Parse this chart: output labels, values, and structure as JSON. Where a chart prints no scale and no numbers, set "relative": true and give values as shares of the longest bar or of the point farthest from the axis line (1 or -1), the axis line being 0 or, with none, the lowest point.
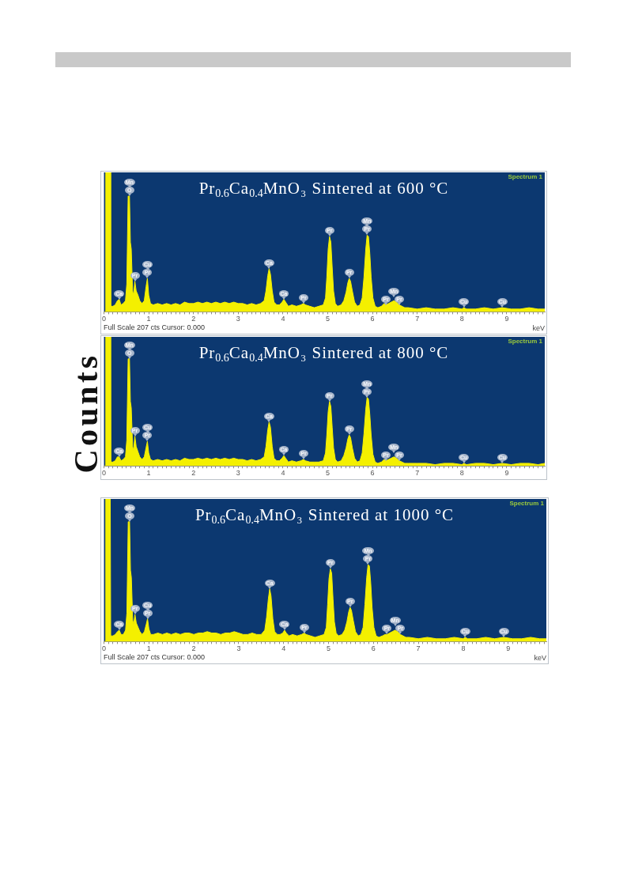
{
  "chart_data": [
    {
      "type": "area",
      "title": "Pr$_{0.6}$Ca$_{0.4}$MnO₃ Sintered at 600 °C",
      "xlabel": "keV",
      "relative": true,
      "color": "#f4f000",
      "xlim": [
        0,
        9.85
      ],
      "xticks": [
        0,
        {
          "value": 0.1,
          "label": null
        },
        {
          "value": 0.2,
          "label": null
        },
        {
          "value": 0.3,
          "label": null
        },
        {
          "value": 0.4,
          "label": null
        },
        {
          "value": 0.5,
          "label": null
        },
        {
          "value": 0.6,
          "label": null
        },
        {
          "value": 0.7,
          "label": null
        },
        {
          "value": 0.8,
          "label": null
        },
        {
          "value": 0.9,
          "label": null
        },
        1,
        {
          "value": 1.1,
          "label": null
        },
        {
          "value": 1.2,
          "label": null
        },
        {
          "value": 1.3,
          "label": null
        },
        {
          "value": 1.4,
          "label": null
        },
        {
          "value": 1.5,
          "label": null
        },
        {
          "value": 1.6,
          "label": null
        },
        {
          "value": 1.7,
          "label": null
        },
        {
          "value": 1.8,
          "label": null
        },
        {
          "value": 1.9,
          "label": null
        },
        2,
        {
          "value": 2.1,
          "label": null
        },
        {
          "value": 2.2,
          "label": null
        },
        {
          "value": 2.3,
          "label": null
        },
        {
          "value": 2.4,
          "label": null
        },
        {
          "value": 2.5,
          "label": null
        },
        {
          "value": 2.6,
          "label": null
        },
        {
          "value": 2.7,
          "label": null
        },
        {
          "value": 2.8,
          "label": null
        },
        {
          "value": 2.9,
          "label": null
        },
        3,
        {
          "value": 3.1,
          "label": null
        },
        {
          "value": 3.2,
          "label": null
        },
        {
          "value": 3.3,
          "label": null
        },
        {
          "value": 3.4,
          "label": null
        },
        {
          "value": 3.5,
          "label": null
        },
        {
          "value": 3.6,
          "label": null
        },
        {
          "value": 3.7,
          "label": null
        },
        {
          "value": 3.8,
          "label": null
        },
        {
          "value": 3.9,
          "label": null
        },
        4,
        {
          "value": 4.1,
          "label": null
        },
        {
          "value": 4.2,
          "label": null
        },
        {
          "value": 4.3,
          "label": null
        },
        {
          "value": 4.4,
          "label": null
        },
        {
          "value": 4.5,
          "label": null
        },
        {
          "value": 4.6,
          "label": null
        },
        {
          "value": 4.7,
          "label": null
        },
        {
          "value": 4.8,
          "label": null
        },
        {
          "value": 4.9,
          "label": null
        },
        5,
        {
          "value": 5.1,
          "label": null
        },
        {
          "value": 5.2,
          "label": null
        },
        {
          "value": 5.3,
          "label": null
        },
        {
          "value": 5.4,
          "label": null
        },
        {
          "value": 5.5,
          "label": null
        },
        {
          "value": 5.6,
          "label": null
        },
        {
          "value": 5.7,
          "label": null
        },
        {
          "value": 5.8,
          "label": null
        },
        {
          "value": 5.9,
          "label": null
        },
        6,
        {
          "value": 6.1,
          "label": null
        },
        {
          "value": 6.2,
          "label": null
        },
        {
          "value": 6.3,
          "label": null
        },
        {
          "value": 6.4,
          "label": null
        },
        {
          "value": 6.5,
          "label": null
        },
        {
          "value": 6.6,
          "label": null
        },
        {
          "value": 6.7,
          "label": null
        },
        {
          "value": 6.8,
          "label": null
        },
        {
          "value": 6.9,
          "label": null
        },
        7,
        {
          "value": 7.1,
          "label": null
        },
        {
          "value": 7.2,
          "label": null
        },
        {
          "value": 7.3,
          "label": null
        },
        {
          "value": 7.4,
          "label": null
        },
        {
          "value": 7.5,
          "label": null
        },
        {
          "value": 7.6,
          "label": null
        },
        {
          "value": 7.7,
          "label": null
        },
        {
          "value": 7.8,
          "label": null
        },
        {
          "value": 7.9,
          "label": null
        },
        8,
        {
          "value": 8.1,
          "label": null
        },
        {
          "value": 8.2,
          "label": null
        },
        {
          "value": 8.3,
          "label": null
        },
        {
          "value": 8.4,
          "label": null
        },
        {
          "value": 8.5,
          "label": null
        },
        {
          "value": 8.6,
          "label": null
        },
        {
          "value": 8.7,
          "label": null
        },
        {
          "value": 8.8,
          "label": null
        },
        {
          "value": 8.9,
          "label": null
        },
        9,
        {
          "value": 9.1,
          "label": null
        },
        {
          "value": 9.2,
          "label": null
        },
        {
          "value": 9.3,
          "label": null
        },
        {
          "value": 9.4,
          "label": null
        },
        {
          "value": 9.5,
          "label": null
        },
        {
          "value": 9.6,
          "label": null
        },
        {
          "value": 9.7,
          "label": null
        },
        {
          "value": 9.8,
          "label": null
        }
      ],
      "x": [
        0,
        0.03,
        0.04,
        0.14,
        0.15,
        0.2,
        0.25,
        0.3,
        0.34,
        0.38,
        0.43,
        0.48,
        0.51,
        0.54,
        0.57,
        0.59,
        0.61,
        0.64,
        0.66,
        0.69,
        0.72,
        0.76,
        0.8,
        0.85,
        0.9,
        0.94,
        0.97,
        1,
        1.04,
        1.1,
        1.2,
        1.3,
        1.4,
        1.5,
        1.6,
        1.7,
        1.8,
        1.9,
        2,
        2.1,
        2.2,
        2.3,
        2.4,
        2.5,
        2.6,
        2.7,
        2.8,
        2.9,
        3,
        3.1,
        3.2,
        3.3,
        3.4,
        3.5,
        3.58,
        3.62,
        3.66,
        3.69,
        3.72,
        3.76,
        3.8,
        3.86,
        3.92,
        3.98,
        4.02,
        4.06,
        4.12,
        4.2,
        4.3,
        4.4,
        4.46,
        4.5,
        4.6,
        4.7,
        4.8,
        4.9,
        4.95,
        4.98,
        5.01,
        5.04,
        5.07,
        5.1,
        5.13,
        5.17,
        5.22,
        5.3,
        5.36,
        5.41,
        5.45,
        5.48,
        5.51,
        5.55,
        5.6,
        5.66,
        5.72,
        5.77,
        5.81,
        5.85,
        5.88,
        5.91,
        5.94,
        5.97,
        6.01,
        6.06,
        6.12,
        6.2,
        6.26,
        6.3,
        6.36,
        6.42,
        6.48,
        6.54,
        6.6,
        6.66,
        6.72,
        6.8,
        7,
        7.2,
        7.4,
        7.6,
        7.8,
        8,
        8.04,
        8.1,
        8.3,
        8.5,
        8.7,
        8.9,
        9.1,
        9.3,
        9.5,
        9.7,
        9.85
      ],
      "values": [
        0,
        0,
        1,
        1,
        0.04,
        0.04,
        0.05,
        0.08,
        0.09,
        0.05,
        0.06,
        0.08,
        0.2,
        0.83,
        0.83,
        0.5,
        0.45,
        0.15,
        0.12,
        0.22,
        0.15,
        0.12,
        0.08,
        0.06,
        0.08,
        0.18,
        0.24,
        0.12,
        0.06,
        0.05,
        0.06,
        0.05,
        0.06,
        0.05,
        0.06,
        0.05,
        0.07,
        0.06,
        0.06,
        0.07,
        0.06,
        0.07,
        0.06,
        0.07,
        0.06,
        0.07,
        0.06,
        0.07,
        0.06,
        0.06,
        0.05,
        0.06,
        0.05,
        0.06,
        0.08,
        0.15,
        0.26,
        0.31,
        0.27,
        0.15,
        0.07,
        0.05,
        0.05,
        0.07,
        0.09,
        0.07,
        0.04,
        0.05,
        0.04,
        0.05,
        0.06,
        0.05,
        0.04,
        0.03,
        0.04,
        0.05,
        0.1,
        0.25,
        0.45,
        0.54,
        0.5,
        0.32,
        0.15,
        0.06,
        0.04,
        0.05,
        0.08,
        0.14,
        0.21,
        0.24,
        0.22,
        0.15,
        0.07,
        0.04,
        0.05,
        0.1,
        0.25,
        0.45,
        0.55,
        0.54,
        0.42,
        0.25,
        0.1,
        0.04,
        0.03,
        0.04,
        0.06,
        0.05,
        0.06,
        0.07,
        0.08,
        0.07,
        0.05,
        0.04,
        0.03,
        0.03,
        0.02,
        0.03,
        0.02,
        0.02,
        0.03,
        0.02,
        0.03,
        0.02,
        0.02,
        0.03,
        0.02,
        0.03,
        0.02,
        0.02,
        0.03,
        0.02,
        0.02
      ],
      "annotations": [
        "Spectrum 1",
        {
          "text": "O",
          "x": 0.57,
          "y": 0.83
        },
        {
          "text": "Mn",
          "x": 0.57,
          "y": 0.83
        },
        {
          "text": "Ca",
          "x": 0.34,
          "y": 0.09
        },
        {
          "text": "Pr",
          "x": 0.69,
          "y": 0.22
        },
        {
          "text": "Pr",
          "x": 0.97,
          "y": 0.24
        },
        {
          "text": "Cu",
          "x": 0.97,
          "y": 0.24
        },
        {
          "text": "Ca",
          "x": 3.69,
          "y": 0.31
        },
        {
          "text": "Ca",
          "x": 4.02,
          "y": 0.09
        },
        {
          "text": "Pr",
          "x": 4.46,
          "y": 0.06
        },
        {
          "text": "Pr",
          "x": 5.04,
          "y": 0.54
        },
        {
          "text": "Pr",
          "x": 5.48,
          "y": 0.24
        },
        {
          "text": "Pr",
          "x": 5.88,
          "y": 0.55
        },
        {
          "text": "Mn",
          "x": 5.88,
          "y": 0.55
        },
        {
          "text": "Pr",
          "x": 6.6,
          "y": 0.05
        },
        {
          "text": "Pr",
          "x": 6.3,
          "y": 0.05
        },
        {
          "text": "Mn",
          "x": 6.48,
          "y": 0.08
        },
        {
          "text": "Cu",
          "x": 8.04,
          "y": 0.03
        },
        {
          "text": "Cu",
          "x": 8.9,
          "y": 0.03
        },
        "Full Scale 207 cts Cursor: 0.000"
      ]
    },
    {
      "type": "area",
      "title": "Pr$_{0.6}$Ca$_{0.4}$MnO₃ Sintered at 800 °C",
      "ylabel": "Counts",
      "relative": true,
      "color": "#f4f000",
      "xlim": [
        0,
        9.85
      ],
      "xticks": [
        0,
        {
          "value": 0.1,
          "label": null
        },
        {
          "value": 0.2,
          "label": null
        },
        {
          "value": 0.3,
          "label": null
        },
        {
          "value": 0.4,
          "label": null
        },
        {
          "value": 0.5,
          "label": null
        },
        {
          "value": 0.6,
          "label": null
        },
        {
          "value": 0.7,
          "label": null
        },
        {
          "value": 0.8,
          "label": null
        },
        {
          "value": 0.9,
          "label": null
        },
        1,
        {
          "value": 1.1,
          "label": null
        },
        {
          "value": 1.2,
          "label": null
        },
        {
          "value": 1.3,
          "label": null
        },
        {
          "value": 1.4,
          "label": null
        },
        {
          "value": 1.5,
          "label": null
        },
        {
          "value": 1.6,
          "label": null
        },
        {
          "value": 1.7,
          "label": null
        },
        {
          "value": 1.8,
          "label": null
        },
        {
          "value": 1.9,
          "label": null
        },
        2,
        {
          "value": 2.1,
          "label": null
        },
        {
          "value": 2.2,
          "label": null
        },
        {
          "value": 2.3,
          "label": null
        },
        {
          "value": 2.4,
          "label": null
        },
        {
          "value": 2.5,
          "label": null
        },
        {
          "value": 2.6,
          "label": null
        },
        {
          "value": 2.7,
          "label": null
        },
        {
          "value": 2.8,
          "label": null
        },
        {
          "value": 2.9,
          "label": null
        },
        3,
        {
          "value": 3.1,
          "label": null
        },
        {
          "value": 3.2,
          "label": null
        },
        {
          "value": 3.3,
          "label": null
        },
        {
          "value": 3.4,
          "label": null
        },
        {
          "value": 3.5,
          "label": null
        },
        {
          "value": 3.6,
          "label": null
        },
        {
          "value": 3.7,
          "label": null
        },
        {
          "value": 3.8,
          "label": null
        },
        {
          "value": 3.9,
          "label": null
        },
        4,
        {
          "value": 4.1,
          "label": null
        },
        {
          "value": 4.2,
          "label": null
        },
        {
          "value": 4.3,
          "label": null
        },
        {
          "value": 4.4,
          "label": null
        },
        {
          "value": 4.5,
          "label": null
        },
        {
          "value": 4.6,
          "label": null
        },
        {
          "value": 4.7,
          "label": null
        },
        {
          "value": 4.8,
          "label": null
        },
        {
          "value": 4.9,
          "label": null
        },
        5,
        {
          "value": 5.1,
          "label": null
        },
        {
          "value": 5.2,
          "label": null
        },
        {
          "value": 5.3,
          "label": null
        },
        {
          "value": 5.4,
          "label": null
        },
        {
          "value": 5.5,
          "label": null
        },
        {
          "value": 5.6,
          "label": null
        },
        {
          "value": 5.7,
          "label": null
        },
        {
          "value": 5.8,
          "label": null
        },
        {
          "value": 5.9,
          "label": null
        },
        6,
        {
          "value": 6.1,
          "label": null
        },
        {
          "value": 6.2,
          "label": null
        },
        {
          "value": 6.3,
          "label": null
        },
        {
          "value": 6.4,
          "label": null
        },
        {
          "value": 6.5,
          "label": null
        },
        {
          "value": 6.6,
          "label": null
        },
        {
          "value": 6.7,
          "label": null
        },
        {
          "value": 6.8,
          "label": null
        },
        {
          "value": 6.9,
          "label": null
        },
        7,
        {
          "value": 7.1,
          "label": null
        },
        {
          "value": 7.2,
          "label": null
        },
        {
          "value": 7.3,
          "label": null
        },
        {
          "value": 7.4,
          "label": null
        },
        {
          "value": 7.5,
          "label": null
        },
        {
          "value": 7.6,
          "label": null
        },
        {
          "value": 7.7,
          "label": null
        },
        {
          "value": 7.8,
          "label": null
        },
        {
          "value": 7.9,
          "label": null
        },
        8,
        {
          "value": 8.1,
          "label": null
        },
        {
          "value": 8.2,
          "label": null
        },
        {
          "value": 8.3,
          "label": null
        },
        {
          "value": 8.4,
          "label": null
        },
        {
          "value": 8.5,
          "label": null
        },
        {
          "value": 8.6,
          "label": null
        },
        {
          "value": 8.7,
          "label": null
        },
        {
          "value": 8.8,
          "label": null
        },
        {
          "value": 8.9,
          "label": null
        },
        9,
        {
          "value": 9.1,
          "label": null
        },
        {
          "value": 9.2,
          "label": null
        },
        {
          "value": 9.3,
          "label": null
        },
        {
          "value": 9.4,
          "label": null
        },
        {
          "value": 9.5,
          "label": null
        },
        {
          "value": 9.6,
          "label": null
        },
        {
          "value": 9.7,
          "label": null
        },
        {
          "value": 9.8,
          "label": null
        }
      ],
      "x": [
        0,
        0.03,
        0.04,
        0.14,
        0.15,
        0.2,
        0.25,
        0.3,
        0.34,
        0.38,
        0.43,
        0.48,
        0.51,
        0.54,
        0.57,
        0.59,
        0.61,
        0.64,
        0.66,
        0.69,
        0.72,
        0.76,
        0.8,
        0.85,
        0.9,
        0.94,
        0.97,
        1,
        1.04,
        1.1,
        1.2,
        1.3,
        1.4,
        1.5,
        1.6,
        1.7,
        1.8,
        1.9,
        2,
        2.1,
        2.2,
        2.3,
        2.4,
        2.5,
        2.6,
        2.7,
        2.8,
        2.9,
        3,
        3.1,
        3.2,
        3.3,
        3.4,
        3.5,
        3.58,
        3.62,
        3.66,
        3.69,
        3.72,
        3.76,
        3.8,
        3.86,
        3.92,
        3.98,
        4.02,
        4.06,
        4.12,
        4.2,
        4.3,
        4.4,
        4.46,
        4.5,
        4.6,
        4.7,
        4.8,
        4.9,
        4.95,
        4.98,
        5.01,
        5.04,
        5.07,
        5.1,
        5.13,
        5.17,
        5.22,
        5.3,
        5.36,
        5.41,
        5.45,
        5.48,
        5.51,
        5.55,
        5.6,
        5.66,
        5.72,
        5.77,
        5.81,
        5.85,
        5.88,
        5.91,
        5.94,
        5.97,
        6.01,
        6.06,
        6.12,
        6.2,
        6.26,
        6.3,
        6.36,
        6.42,
        6.48,
        6.54,
        6.6,
        6.66,
        6.72,
        6.8,
        7,
        7.2,
        7.4,
        7.6,
        7.8,
        8,
        8.04,
        8.1,
        8.3,
        8.5,
        8.7,
        8.9,
        9.1,
        9.3,
        9.5,
        9.7,
        9.85
      ],
      "values": [
        0,
        0,
        1,
        1,
        0.03,
        0.03,
        0.04,
        0.07,
        0.07,
        0.04,
        0.05,
        0.07,
        0.2,
        0.83,
        0.83,
        0.5,
        0.45,
        0.15,
        0.12,
        0.23,
        0.15,
        0.11,
        0.07,
        0.05,
        0.07,
        0.14,
        0.19,
        0.1,
        0.05,
        0.04,
        0.05,
        0.04,
        0.05,
        0.04,
        0.05,
        0.04,
        0.06,
        0.05,
        0.05,
        0.06,
        0.05,
        0.06,
        0.05,
        0.06,
        0.05,
        0.06,
        0.05,
        0.06,
        0.05,
        0.05,
        0.04,
        0.05,
        0.04,
        0.05,
        0.07,
        0.15,
        0.28,
        0.34,
        0.3,
        0.15,
        0.06,
        0.04,
        0.04,
        0.06,
        0.08,
        0.06,
        0.03,
        0.04,
        0.03,
        0.04,
        0.05,
        0.04,
        0.03,
        0.03,
        0.03,
        0.04,
        0.1,
        0.24,
        0.42,
        0.5,
        0.46,
        0.3,
        0.14,
        0.05,
        0.03,
        0.04,
        0.08,
        0.14,
        0.21,
        0.24,
        0.22,
        0.14,
        0.06,
        0.03,
        0.04,
        0.1,
        0.25,
        0.44,
        0.53,
        0.52,
        0.4,
        0.24,
        0.09,
        0.03,
        0.02,
        0.03,
        0.05,
        0.04,
        0.05,
        0.06,
        0.07,
        0.06,
        0.04,
        0.03,
        0.02,
        0.02,
        0.02,
        0.02,
        0.01,
        0.02,
        0.02,
        0.01,
        0.02,
        0.01,
        0.02,
        0.02,
        0.01,
        0.02,
        0.01,
        0.02,
        0.02,
        0.01,
        0.02
      ],
      "annotations": [
        "Spectrum 1",
        {
          "text": "O",
          "x": 0.57,
          "y": 0.83
        },
        {
          "text": "Mn",
          "x": 0.57,
          "y": 0.83
        },
        {
          "text": "Ca",
          "x": 0.34,
          "y": 0.07
        },
        {
          "text": "Pr",
          "x": 0.69,
          "y": 0.23
        },
        {
          "text": "Pr",
          "x": 0.97,
          "y": 0.19
        },
        {
          "text": "Cu",
          "x": 0.97,
          "y": 0.19
        },
        {
          "text": "Ca",
          "x": 3.69,
          "y": 0.34
        },
        {
          "text": "Ca",
          "x": 4.02,
          "y": 0.08
        },
        {
          "text": "Pr",
          "x": 4.46,
          "y": 0.05
        },
        {
          "text": "Pr",
          "x": 5.04,
          "y": 0.5
        },
        {
          "text": "Pr",
          "x": 5.48,
          "y": 0.24
        },
        {
          "text": "Pr",
          "x": 5.88,
          "y": 0.53
        },
        {
          "text": "Mn",
          "x": 5.88,
          "y": 0.53
        },
        {
          "text": "Pr",
          "x": 6.6,
          "y": 0.04
        },
        {
          "text": "Pr",
          "x": 6.3,
          "y": 0.04
        },
        {
          "text": "Mn",
          "x": 6.48,
          "y": 0.07
        },
        {
          "text": "Cu",
          "x": 8.04,
          "y": 0.02
        },
        {
          "text": "Cu",
          "x": 8.9,
          "y": 0.02
        }
      ]
    },
    {
      "type": "area",
      "title": "Pr$_{0.6}$Ca$_{0.4}$MnO₃ Sintered at 1000 °C",
      "xlabel": "keV",
      "relative": true,
      "color": "#f4f000",
      "xlim": [
        0,
        9.85
      ],
      "xticks": [
        0,
        {
          "value": 0.1,
          "label": null
        },
        {
          "value": 0.2,
          "label": null
        },
        {
          "value": 0.3,
          "label": null
        },
        {
          "value": 0.4,
          "label": null
        },
        {
          "value": 0.5,
          "label": null
        },
        {
          "value": 0.6,
          "label": null
        },
        {
          "value": 0.7,
          "label": null
        },
        {
          "value": 0.8,
          "label": null
        },
        {
          "value": 0.9,
          "label": null
        },
        1,
        {
          "value": 1.1,
          "label": null
        },
        {
          "value": 1.2,
          "label": null
        },
        {
          "value": 1.3,
          "label": null
        },
        {
          "value": 1.4,
          "label": null
        },
        {
          "value": 1.5,
          "label": null
        },
        {
          "value": 1.6,
          "label": null
        },
        {
          "value": 1.7,
          "label": null
        },
        {
          "value": 1.8,
          "label": null
        },
        {
          "value": 1.9,
          "label": null
        },
        2,
        {
          "value": 2.1,
          "label": null
        },
        {
          "value": 2.2,
          "label": null
        },
        {
          "value": 2.3,
          "label": null
        },
        {
          "value": 2.4,
          "label": null
        },
        {
          "value": 2.5,
          "label": null
        },
        {
          "value": 2.6,
          "label": null
        },
        {
          "value": 2.7,
          "label": null
        },
        {
          "value": 2.8,
          "label": null
        },
        {
          "value": 2.9,
          "label": null
        },
        3,
        {
          "value": 3.1,
          "label": null
        },
        {
          "value": 3.2,
          "label": null
        },
        {
          "value": 3.3,
          "label": null
        },
        {
          "value": 3.4,
          "label": null
        },
        {
          "value": 3.5,
          "label": null
        },
        {
          "value": 3.6,
          "label": null
        },
        {
          "value": 3.7,
          "label": null
        },
        {
          "value": 3.8,
          "label": null
        },
        {
          "value": 3.9,
          "label": null
        },
        4,
        {
          "value": 4.1,
          "label": null
        },
        {
          "value": 4.2,
          "label": null
        },
        {
          "value": 4.3,
          "label": null
        },
        {
          "value": 4.4,
          "label": null
        },
        {
          "value": 4.5,
          "label": null
        },
        {
          "value": 4.6,
          "label": null
        },
        {
          "value": 4.7,
          "label": null
        },
        {
          "value": 4.8,
          "label": null
        },
        {
          "value": 4.9,
          "label": null
        },
        5,
        {
          "value": 5.1,
          "label": null
        },
        {
          "value": 5.2,
          "label": null
        },
        {
          "value": 5.3,
          "label": null
        },
        {
          "value": 5.4,
          "label": null
        },
        {
          "value": 5.5,
          "label": null
        },
        {
          "value": 5.6,
          "label": null
        },
        {
          "value": 5.7,
          "label": null
        },
        {
          "value": 5.8,
          "label": null
        },
        {
          "value": 5.9,
          "label": null
        },
        6,
        {
          "value": 6.1,
          "label": null
        },
        {
          "value": 6.2,
          "label": null
        },
        {
          "value": 6.3,
          "label": null
        },
        {
          "value": 6.4,
          "label": null
        },
        {
          "value": 6.5,
          "label": null
        },
        {
          "value": 6.6,
          "label": null
        },
        {
          "value": 6.7,
          "label": null
        },
        {
          "value": 6.8,
          "label": null
        },
        {
          "value": 6.9,
          "label": null
        },
        7,
        {
          "value": 7.1,
          "label": null
        },
        {
          "value": 7.2,
          "label": null
        },
        {
          "value": 7.3,
          "label": null
        },
        {
          "value": 7.4,
          "label": null
        },
        {
          "value": 7.5,
          "label": null
        },
        {
          "value": 7.6,
          "label": null
        },
        {
          "value": 7.7,
          "label": null
        },
        {
          "value": 7.8,
          "label": null
        },
        {
          "value": 7.9,
          "label": null
        },
        8,
        {
          "value": 8.1,
          "label": null
        },
        {
          "value": 8.2,
          "label": null
        },
        {
          "value": 8.3,
          "label": null
        },
        {
          "value": 8.4,
          "label": null
        },
        {
          "value": 8.5,
          "label": null
        },
        {
          "value": 8.6,
          "label": null
        },
        {
          "value": 8.7,
          "label": null
        },
        {
          "value": 8.8,
          "label": null
        },
        {
          "value": 8.9,
          "label": null
        },
        9,
        {
          "value": 9.1,
          "label": null
        },
        {
          "value": 9.2,
          "label": null
        },
        {
          "value": 9.3,
          "label": null
        },
        {
          "value": 9.4,
          "label": null
        },
        {
          "value": 9.5,
          "label": null
        },
        {
          "value": 9.6,
          "label": null
        },
        {
          "value": 9.7,
          "label": null
        },
        {
          "value": 9.8,
          "label": null
        }
      ],
      "x": [
        0,
        0.03,
        0.04,
        0.14,
        0.15,
        0.2,
        0.25,
        0.3,
        0.34,
        0.38,
        0.43,
        0.48,
        0.51,
        0.54,
        0.57,
        0.59,
        0.61,
        0.64,
        0.66,
        0.69,
        0.72,
        0.76,
        0.8,
        0.85,
        0.9,
        0.94,
        0.97,
        1,
        1.04,
        1.1,
        1.2,
        1.3,
        1.4,
        1.5,
        1.6,
        1.7,
        1.8,
        1.9,
        2,
        2.1,
        2.2,
        2.3,
        2.4,
        2.5,
        2.6,
        2.7,
        2.8,
        2.9,
        3,
        3.1,
        3.2,
        3.3,
        3.4,
        3.5,
        3.58,
        3.62,
        3.66,
        3.69,
        3.72,
        3.76,
        3.8,
        3.86,
        3.92,
        3.98,
        4.02,
        4.06,
        4.12,
        4.2,
        4.3,
        4.4,
        4.46,
        4.5,
        4.6,
        4.7,
        4.8,
        4.9,
        4.95,
        4.98,
        5.01,
        5.04,
        5.07,
        5.1,
        5.13,
        5.17,
        5.22,
        5.3,
        5.36,
        5.41,
        5.45,
        5.48,
        5.51,
        5.55,
        5.6,
        5.66,
        5.72,
        5.77,
        5.81,
        5.85,
        5.88,
        5.91,
        5.94,
        5.97,
        6.01,
        6.06,
        6.12,
        6.2,
        6.26,
        6.3,
        6.36,
        6.42,
        6.48,
        6.54,
        6.6,
        6.66,
        6.72,
        6.8,
        7,
        7.2,
        7.4,
        7.6,
        7.8,
        8,
        8.04,
        8.1,
        8.3,
        8.5,
        8.7,
        8.9,
        9.1,
        9.3,
        9.5,
        9.7,
        9.85
      ],
      "values": [
        0,
        0,
        1,
        1,
        0.04,
        0.04,
        0.05,
        0.07,
        0.08,
        0.05,
        0.05,
        0.08,
        0.2,
        0.84,
        0.84,
        0.5,
        0.45,
        0.15,
        0.12,
        0.19,
        0.13,
        0.1,
        0.07,
        0.05,
        0.07,
        0.12,
        0.16,
        0.09,
        0.05,
        0.05,
        0.06,
        0.05,
        0.06,
        0.05,
        0.06,
        0.05,
        0.06,
        0.06,
        0.05,
        0.06,
        0.06,
        0.07,
        0.06,
        0.06,
        0.05,
        0.06,
        0.06,
        0.07,
        0.06,
        0.05,
        0.05,
        0.06,
        0.05,
        0.05,
        0.08,
        0.17,
        0.3,
        0.37,
        0.32,
        0.16,
        0.07,
        0.05,
        0.05,
        0.06,
        0.08,
        0.06,
        0.04,
        0.05,
        0.04,
        0.05,
        0.06,
        0.05,
        0.04,
        0.03,
        0.04,
        0.05,
        0.1,
        0.26,
        0.44,
        0.51,
        0.48,
        0.3,
        0.14,
        0.06,
        0.04,
        0.05,
        0.08,
        0.14,
        0.21,
        0.24,
        0.22,
        0.15,
        0.07,
        0.04,
        0.05,
        0.1,
        0.26,
        0.45,
        0.54,
        0.53,
        0.41,
        0.24,
        0.1,
        0.04,
        0.03,
        0.04,
        0.05,
        0.05,
        0.06,
        0.07,
        0.08,
        0.07,
        0.05,
        0.04,
        0.03,
        0.03,
        0.02,
        0.03,
        0.02,
        0.02,
        0.03,
        0.02,
        0.03,
        0.02,
        0.02,
        0.03,
        0.02,
        0.03,
        0.02,
        0.02,
        0.03,
        0.02,
        0.02
      ],
      "annotations": [
        "Spectrum 1",
        {
          "text": "O",
          "x": 0.57,
          "y": 0.84
        },
        {
          "text": "Mn",
          "x": 0.57,
          "y": 0.84
        },
        {
          "text": "Ca",
          "x": 0.34,
          "y": 0.08
        },
        {
          "text": "Pr",
          "x": 0.69,
          "y": 0.19
        },
        {
          "text": "Pr",
          "x": 0.97,
          "y": 0.16
        },
        {
          "text": "Cu",
          "x": 0.97,
          "y": 0.16
        },
        {
          "text": "Ca",
          "x": 3.69,
          "y": 0.37
        },
        {
          "text": "Ca",
          "x": 4.02,
          "y": 0.08
        },
        {
          "text": "Pr",
          "x": 4.46,
          "y": 0.06
        },
        {
          "text": "Pr",
          "x": 5.04,
          "y": 0.51
        },
        {
          "text": "Pr",
          "x": 5.48,
          "y": 0.24
        },
        {
          "text": "Pr",
          "x": 5.88,
          "y": 0.54
        },
        {
          "text": "Mn",
          "x": 5.88,
          "y": 0.54
        },
        {
          "text": "Pr",
          "x": 6.3,
          "y": 0.05
        },
        {
          "text": "Pr",
          "x": 6.6,
          "y": 0.05
        },
        {
          "text": "Mn",
          "x": 6.48,
          "y": 0.08
        },
        {
          "text": "Cu",
          "x": 8.04,
          "y": 0.03
        },
        {
          "text": "Cu",
          "x": 8.9,
          "y": 0.03
        },
        "Full Scale 207 cts Cursor: 0.000"
      ]
    }
  ]
}
